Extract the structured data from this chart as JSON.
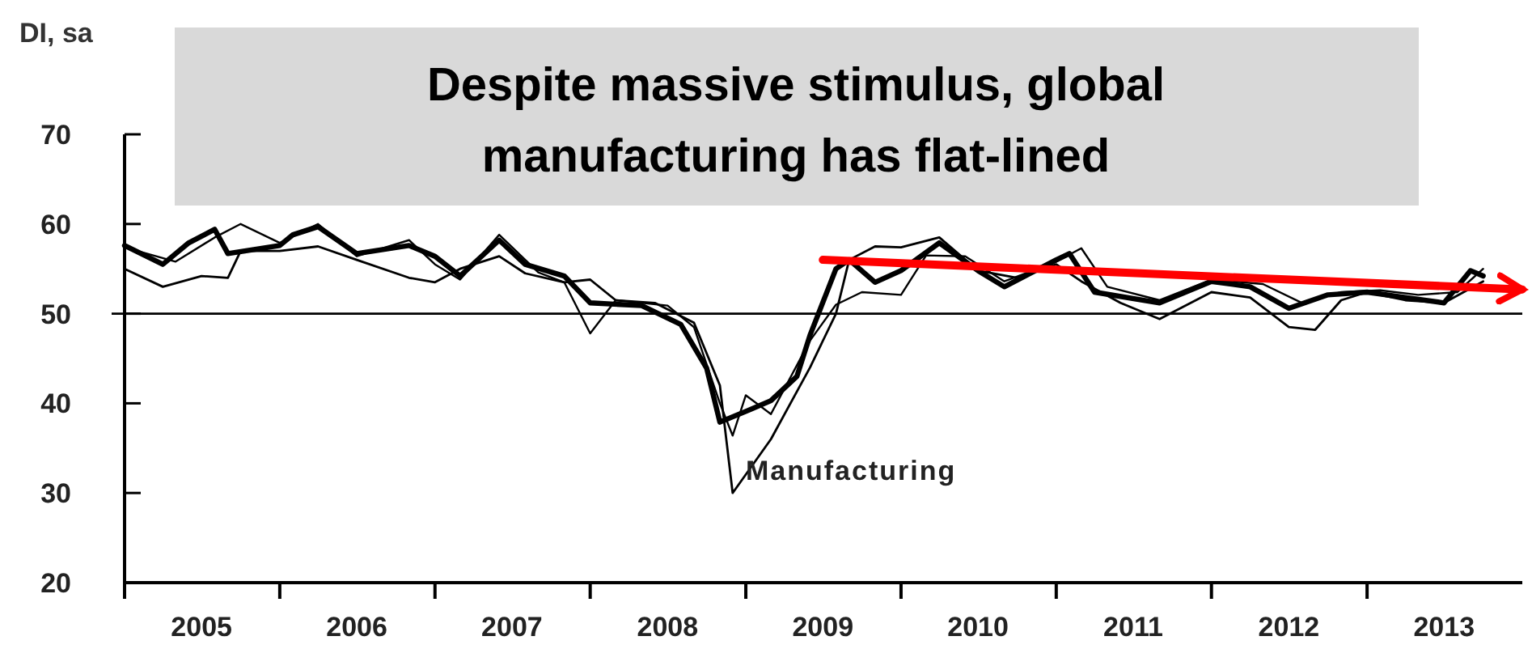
{
  "chart_data": {
    "type": "line",
    "title": "Despite massive stimulus, global manufacturing has flat-lined",
    "ylabel": "DI, sa",
    "annotations": [
      "Manufacturing"
    ],
    "xlim": [
      "2005-01",
      "2014-01"
    ],
    "xticks": [
      {
        "value": "2005-01",
        "label": null
      },
      {
        "value": "2005-07",
        "label": "2005"
      },
      {
        "value": "2006-01",
        "label": null
      },
      {
        "value": "2006-07",
        "label": "2006"
      },
      {
        "value": "2007-01",
        "label": null
      },
      {
        "value": "2007-07",
        "label": "2007"
      },
      {
        "value": "2008-01",
        "label": null
      },
      {
        "value": "2008-07",
        "label": "2008"
      },
      {
        "value": "2009-01",
        "label": null
      },
      {
        "value": "2009-07",
        "label": "2009"
      },
      {
        "value": "2010-01",
        "label": null
      },
      {
        "value": "2010-07",
        "label": "2010"
      },
      {
        "value": "2011-01",
        "label": null
      },
      {
        "value": "2011-07",
        "label": "2011"
      },
      {
        "value": "2012-01",
        "label": null
      },
      {
        "value": "2012-07",
        "label": "2012"
      },
      {
        "value": "2013-01",
        "label": null
      },
      {
        "value": "2013-07",
        "label": "2013"
      }
    ],
    "ylim": [
      20,
      70
    ],
    "yticks": [
      20,
      30,
      40,
      50,
      60,
      70
    ],
    "grid": false,
    "ref_lines": [
      {
        "axis": "y",
        "value": 50,
        "color": "#000000"
      }
    ],
    "series": [
      {
        "color": "#000000",
        "x": [
          "2005-01",
          "2005-04",
          "2005-06",
          "2005-08",
          "2005-09",
          "2006-01",
          "2006-02",
          "2006-04",
          "2006-07",
          "2006-11",
          "2007-01",
          "2007-03",
          "2007-06",
          "2007-08",
          "2007-11",
          "2008-01",
          "2008-05",
          "2008-08",
          "2008-10",
          "2008-11",
          "2009-01",
          "2009-03",
          "2009-05",
          "2009-06",
          "2009-08",
          "2009-09",
          "2009-11",
          "2010-01",
          "2010-04",
          "2010-07",
          "2010-09",
          "2011-01",
          "2011-02",
          "2011-04",
          "2011-09",
          "2012-01",
          "2012-04",
          "2012-07",
          "2012-10",
          "2013-01",
          "2013-04",
          "2013-07",
          "2013-09",
          "2013-10"
        ],
        "values": [
          57.6,
          55.5,
          57.9,
          59.4,
          56.7,
          57.6,
          58.8,
          59.7,
          56.7,
          57.6,
          56.4,
          54.2,
          58.2,
          55.5,
          54.2,
          51.2,
          50.9,
          48.8,
          43.9,
          37.9,
          39.1,
          40.3,
          43,
          47.6,
          55,
          56,
          53.5,
          54.8,
          57.9,
          54.8,
          53,
          56,
          56.7,
          52.4,
          51.2,
          53.6,
          53,
          50.6,
          52.1,
          52.4,
          51.8,
          51.2,
          54.8,
          54.2
        ]
      },
      {
        "color": "#000000",
        "x": [
          "2005-01",
          "2005-04",
          "2005-07",
          "2005-09",
          "2005-10",
          "2006-01",
          "2006-04",
          "2006-07",
          "2006-11",
          "2007-01",
          "2007-03",
          "2007-06",
          "2007-08",
          "2007-11",
          "2008-01",
          "2008-03",
          "2008-06",
          "2008-09",
          "2008-11",
          "2008-12",
          "2009-03",
          "2009-06",
          "2009-08",
          "2009-09",
          "2009-11",
          "2010-01",
          "2010-04",
          "2010-07",
          "2010-10",
          "2011-01",
          "2011-03",
          "2011-06",
          "2011-09",
          "2012-01",
          "2012-04",
          "2012-07",
          "2012-09",
          "2012-11",
          "2013-01",
          "2013-04",
          "2013-07",
          "2013-10"
        ],
        "values": [
          55,
          53,
          54.2,
          54,
          57,
          57,
          57.5,
          56,
          54,
          53.5,
          55,
          56.4,
          54.5,
          53.5,
          53.8,
          51.5,
          51.2,
          49,
          42,
          30,
          36,
          44,
          50,
          56,
          57.5,
          57.4,
          58.5,
          54.8,
          54,
          55.5,
          53.6,
          51.2,
          49.4,
          52.4,
          51.8,
          48.5,
          48.2,
          51.5,
          52.4,
          51.5,
          51.2,
          53.6
        ]
      },
      {
        "color": "#000000",
        "x": [
          "2005-01",
          "2005-05",
          "2005-08",
          "2005-10",
          "2006-01",
          "2006-04",
          "2006-07",
          "2006-11",
          "2007-01",
          "2007-03",
          "2007-06",
          "2007-09",
          "2007-11",
          "2008-01",
          "2008-03",
          "2008-07",
          "2008-09",
          "2008-11",
          "2008-12",
          "2009-01",
          "2009-03",
          "2009-06",
          "2009-08",
          "2009-10",
          "2010-01",
          "2010-03",
          "2010-06",
          "2010-09",
          "2011-01",
          "2011-03",
          "2011-05",
          "2011-09",
          "2012-01",
          "2012-05",
          "2012-08",
          "2012-11",
          "2013-02",
          "2013-05",
          "2013-08",
          "2013-10"
        ],
        "values": [
          57.4,
          55.8,
          58.5,
          60,
          57.9,
          60,
          56.4,
          58.2,
          55.5,
          53.8,
          58.8,
          54.6,
          53.5,
          47.8,
          51.5,
          50.9,
          48.5,
          40,
          36.4,
          40.9,
          38.8,
          47,
          51,
          52.4,
          52.1,
          56.5,
          56.4,
          53.6,
          55.8,
          57.3,
          53,
          51.5,
          53.8,
          53.3,
          51.2,
          52.4,
          52.6,
          52.1,
          52.4,
          55
        ]
      },
      {
        "type": "line",
        "color": "#ff0000",
        "x": [
          "2009-07",
          "2014-01"
        ],
        "values": [
          56,
          52.7
        ]
      }
    ]
  }
}
